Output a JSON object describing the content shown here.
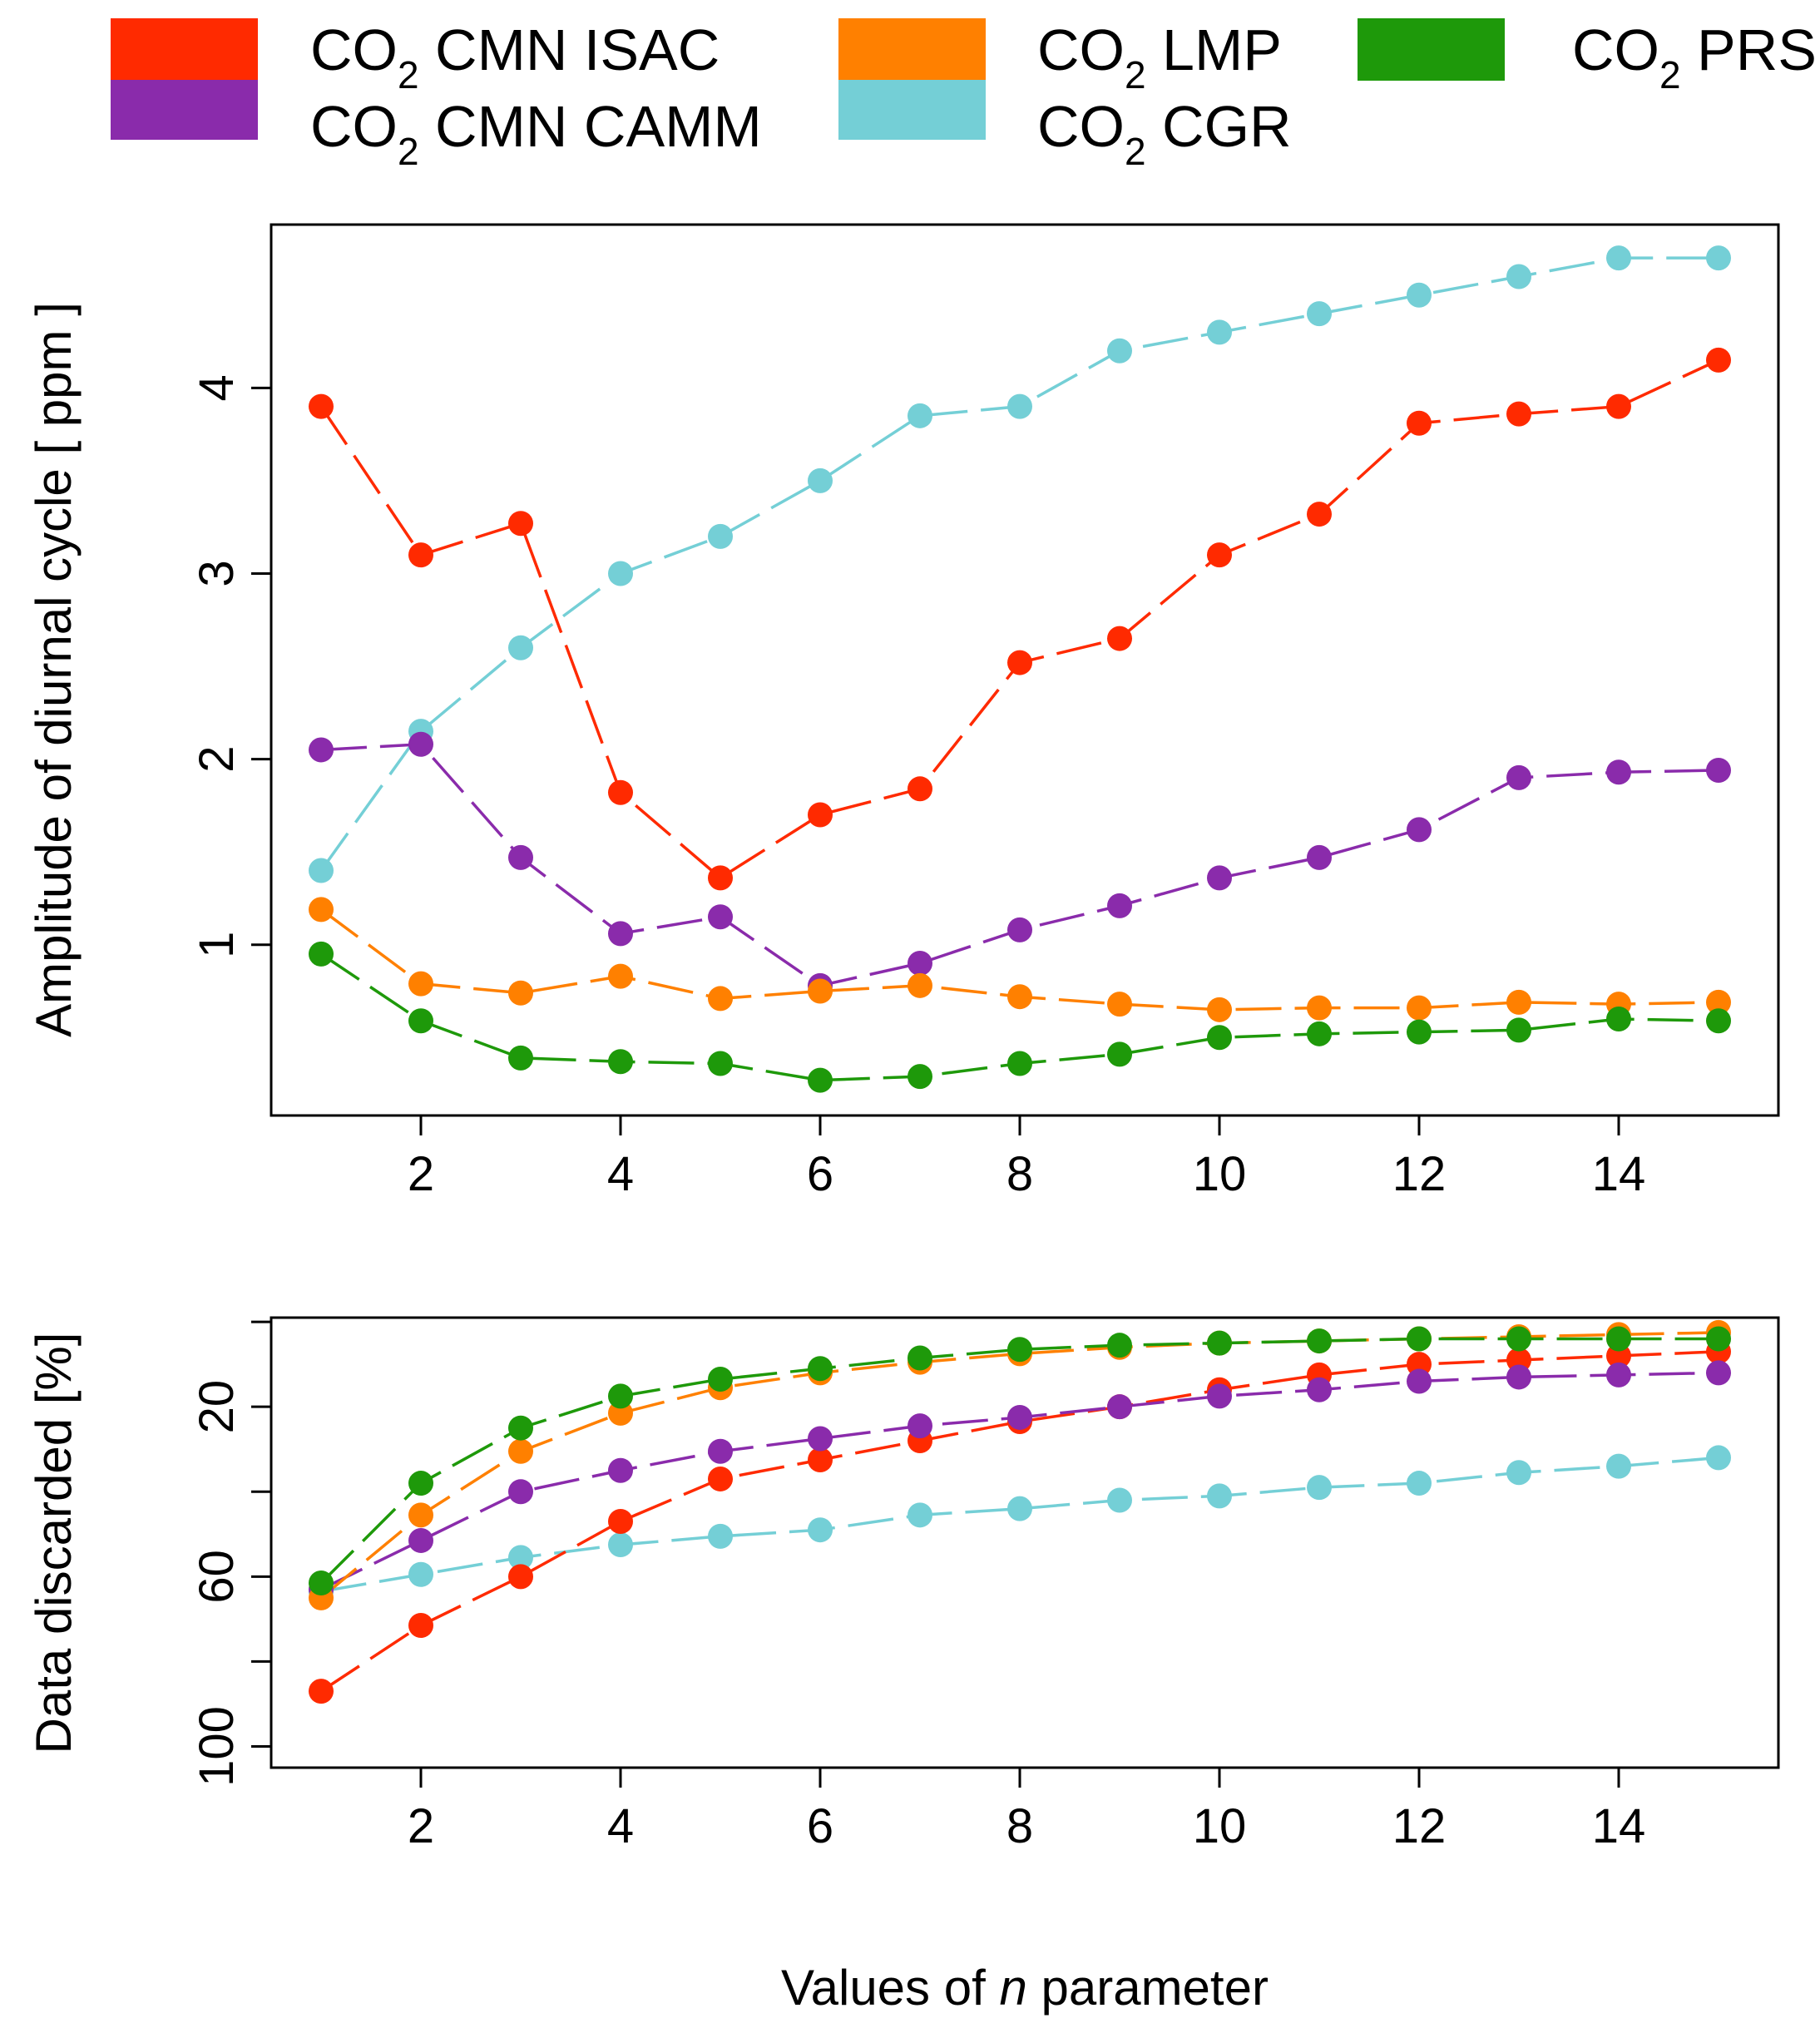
{
  "legend": {
    "entries": [
      {
        "prefix": "CO",
        "sub": "2",
        "label": " CMN ISAC",
        "color": "#ff2a00"
      },
      {
        "prefix": "CO",
        "sub": "2",
        "label": " CMN CAMM",
        "color": "#8a2bab"
      },
      {
        "prefix": "CO",
        "sub": "2",
        "label": " LMP",
        "color": "#ff8000"
      },
      {
        "prefix": "CO",
        "sub": "2",
        "label": " CGR",
        "color": "#74cfd6"
      },
      {
        "prefix": "CO",
        "sub": "2",
        "label": " PRS",
        "color": "#1e990a"
      }
    ]
  },
  "xlabel": {
    "pre": "Values of ",
    "italic": "n",
    "post": " parameter"
  },
  "chart_data": [
    {
      "type": "line",
      "title": "",
      "xlabel": "",
      "ylabel": "Amplitude of diurnal cycle [ ppm ]",
      "xlim": [
        0.5,
        15.6
      ],
      "ylim": [
        0.08,
        4.88
      ],
      "reverse_y": false,
      "xticks": [
        2,
        4,
        6,
        8,
        10,
        12,
        14
      ],
      "yticks": [
        1,
        2,
        3,
        4
      ],
      "x": [
        1,
        2,
        3,
        4,
        5,
        6,
        7,
        8,
        9,
        10,
        11,
        12,
        13,
        14,
        15
      ],
      "series": [
        {
          "name": "CO2 CGR",
          "color": "#74cfd6",
          "values": [
            1.4,
            2.15,
            2.6,
            3.0,
            3.2,
            3.5,
            3.85,
            3.9,
            4.2,
            4.3,
            4.4,
            4.5,
            4.6,
            4.7,
            4.7
          ]
        },
        {
          "name": "CO2 CMN ISAC",
          "color": "#ff2a00",
          "values": [
            3.9,
            3.1,
            3.27,
            1.82,
            1.36,
            1.7,
            1.84,
            2.52,
            2.65,
            3.1,
            3.32,
            3.81,
            3.86,
            3.9,
            4.15
          ]
        },
        {
          "name": "CO2 CMN CAMM",
          "color": "#8a2bab",
          "values": [
            2.05,
            2.08,
            1.47,
            1.06,
            1.15,
            0.78,
            0.9,
            1.08,
            1.21,
            1.36,
            1.47,
            1.62,
            1.9,
            1.93,
            1.94
          ]
        },
        {
          "name": "CO2 LMP",
          "color": "#ff8000",
          "values": [
            1.19,
            0.79,
            0.74,
            0.83,
            0.71,
            0.75,
            0.78,
            0.72,
            0.68,
            0.65,
            0.66,
            0.66,
            0.69,
            0.68,
            0.69
          ]
        },
        {
          "name": "CO2 PRS",
          "color": "#1e990a",
          "values": [
            0.95,
            0.59,
            0.39,
            0.37,
            0.36,
            0.27,
            0.29,
            0.36,
            0.41,
            0.5,
            0.52,
            0.53,
            0.54,
            0.6,
            0.59
          ]
        }
      ]
    },
    {
      "type": "line",
      "title": "",
      "xlabel": "Values of n parameter",
      "ylabel": "Data discarded [%]",
      "xlim": [
        0.5,
        15.6
      ],
      "ylim": [
        -1,
        105
      ],
      "reverse_y": true,
      "xticks": [
        2,
        4,
        6,
        8,
        10,
        12,
        14
      ],
      "yticks": [
        0,
        20,
        40,
        60,
        80,
        100
      ],
      "ytick_labels": [
        "",
        "20",
        "",
        "60",
        "",
        "100"
      ],
      "x": [
        1,
        2,
        3,
        4,
        5,
        6,
        7,
        8,
        9,
        10,
        11,
        12,
        13,
        14,
        15
      ],
      "series": [
        {
          "name": "CO2 CGR",
          "color": "#74cfd6",
          "values": [
            63.5,
            59.5,
            55.5,
            52.5,
            50.5,
            49.0,
            45.5,
            44.0,
            42.0,
            41.0,
            39.0,
            38.0,
            35.5,
            34.0,
            32.0
          ]
        },
        {
          "name": "CO2 CMN ISAC",
          "color": "#ff2a00",
          "values": [
            87.0,
            71.5,
            60.0,
            47.0,
            37.0,
            32.5,
            28.0,
            23.5,
            20.0,
            16.0,
            12.5,
            10.0,
            9.0,
            8.0,
            7.0
          ]
        },
        {
          "name": "CO2 CMN CAMM",
          "color": "#8a2bab",
          "values": [
            63.0,
            51.5,
            40.0,
            35.0,
            30.5,
            27.5,
            24.5,
            22.5,
            20.0,
            17.5,
            16.0,
            14.0,
            13.0,
            12.5,
            12.0
          ]
        },
        {
          "name": "CO2 LMP",
          "color": "#ff8000",
          "values": [
            65.0,
            45.5,
            30.5,
            21.5,
            15.5,
            12.0,
            9.5,
            7.5,
            6.0,
            5.0,
            4.5,
            4.0,
            3.5,
            3.0,
            2.5
          ]
        },
        {
          "name": "CO2 PRS",
          "color": "#1e990a",
          "values": [
            61.5,
            38.0,
            25.0,
            17.5,
            13.5,
            11.0,
            8.5,
            6.5,
            5.5,
            5.0,
            4.5,
            4.0,
            4.0,
            4.0,
            4.0
          ]
        }
      ]
    }
  ]
}
